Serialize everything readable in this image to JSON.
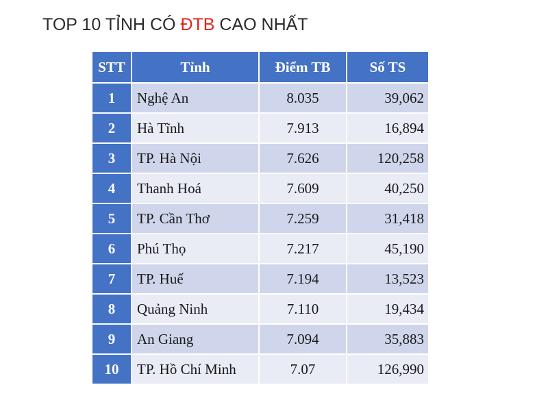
{
  "title": {
    "prefix": "TOP 10 TỈNH CÓ ",
    "highlight": "ĐTB",
    "suffix": " CAO NHẤT",
    "highlight_color": "#e0241b"
  },
  "colors": {
    "header_bg": "#4472c4",
    "row_odd": "#cfd5ea",
    "row_even": "#e9ebf5"
  },
  "table": {
    "headers": [
      "STT",
      "Tỉnh",
      "Điểm TB",
      "Số TS"
    ],
    "rows": [
      [
        "1",
        "Nghệ An",
        "8.035",
        "39,062"
      ],
      [
        "2",
        "Hà Tĩnh",
        "7.913",
        "16,894"
      ],
      [
        "3",
        "TP. Hà Nội",
        "7.626",
        "120,258"
      ],
      [
        "4",
        "Thanh Hoá",
        "7.609",
        "40,250"
      ],
      [
        "5",
        "TP. Cần Thơ",
        "7.259",
        "31,418"
      ],
      [
        "6",
        "Phú Thọ",
        "7.217",
        "45,190"
      ],
      [
        "7",
        "TP. Huế",
        "7.194",
        "13,523"
      ],
      [
        "8",
        "Quảng Ninh",
        "7.110",
        "19,434"
      ],
      [
        "9",
        "An Giang",
        "7.094",
        "35,883"
      ],
      [
        "10",
        "TP. Hồ Chí Minh",
        "7.07",
        "126,990"
      ]
    ]
  }
}
